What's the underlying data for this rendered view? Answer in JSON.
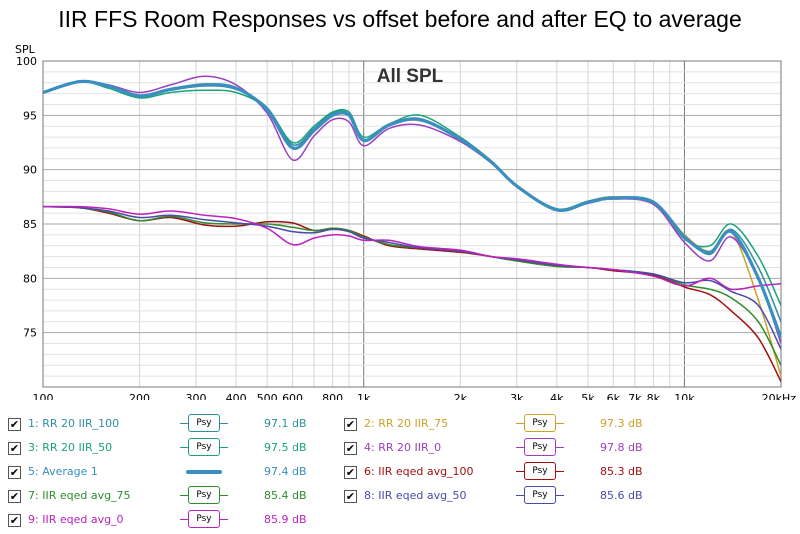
{
  "chart_data": {
    "type": "line",
    "title": "IIR FFS Room Responses vs offset before and after EQ to average",
    "inner_label": "All SPL",
    "ylabel": "SPL",
    "xscale": "log",
    "xlim": [
      100,
      20000
    ],
    "ylim": [
      70,
      100
    ],
    "x_ticks": [
      {
        "value": 100,
        "label": "100"
      },
      {
        "value": 200,
        "label": "200"
      },
      {
        "value": 300,
        "label": "300"
      },
      {
        "value": 400,
        "label": "400"
      },
      {
        "value": 500,
        "label": "500"
      },
      {
        "value": 600,
        "label": "600"
      },
      {
        "value": 800,
        "label": "800"
      },
      {
        "value": 1000,
        "label": "1k"
      },
      {
        "value": 2000,
        "label": "2k"
      },
      {
        "value": 3000,
        "label": "3k"
      },
      {
        "value": 4000,
        "label": "4k"
      },
      {
        "value": 5000,
        "label": "5k"
      },
      {
        "value": 6000,
        "label": "6k"
      },
      {
        "value": 7000,
        "label": "7k"
      },
      {
        "value": 8000,
        "label": "8k"
      },
      {
        "value": 10000,
        "label": "10k"
      },
      {
        "value": 20000,
        "label": "20kHz"
      }
    ],
    "y_ticks": [
      75,
      80,
      85,
      90,
      95,
      100
    ],
    "grid": true,
    "freqs": [
      100,
      130,
      160,
      200,
      250,
      320,
      400,
      500,
      600,
      700,
      800,
      900,
      1000,
      1200,
      1500,
      2000,
      2500,
      3000,
      4000,
      5000,
      6000,
      8000,
      10000,
      12000,
      14000,
      17000,
      20000
    ],
    "series": [
      {
        "name": "1: RR 20 IIR_100",
        "color": "#2f8f9f",
        "width": 1.5,
        "values": [
          97.1,
          98.1,
          97.7,
          96.7,
          97.3,
          97.7,
          97.4,
          95.7,
          92.3,
          93.8,
          95.2,
          95.1,
          92.6,
          94.1,
          94.7,
          92.8,
          90.7,
          88.5,
          86.4,
          87.0,
          87.3,
          87.0,
          84.0,
          82.2,
          84.5,
          81.0,
          76.0
        ]
      },
      {
        "name": "2: RR 20 IIR_75",
        "color": "#c9a227",
        "width": 1.5,
        "values": [
          97.1,
          98.1,
          97.7,
          96.8,
          97.4,
          97.9,
          97.5,
          95.5,
          92.0,
          93.6,
          95.0,
          95.0,
          92.7,
          94.2,
          94.5,
          92.9,
          90.8,
          88.4,
          86.3,
          87.1,
          87.5,
          87.0,
          84.0,
          82.5,
          84.3,
          78.0,
          71.0
        ]
      },
      {
        "name": "3: RR 20 IIR_50",
        "color": "#1ba37a",
        "width": 1.5,
        "values": [
          97.1,
          98.1,
          97.5,
          96.6,
          97.1,
          97.3,
          97.1,
          95.6,
          92.5,
          94.0,
          95.3,
          95.3,
          93.0,
          94.2,
          95.0,
          93.0,
          90.8,
          88.5,
          86.4,
          87.1,
          87.4,
          87.1,
          83.6,
          83.0,
          85.0,
          82.0,
          77.5
        ]
      },
      {
        "name": "4: RR 20 IIR_0",
        "color": "#9b3fbf",
        "width": 1.5,
        "values": [
          97.1,
          98.1,
          97.8,
          97.1,
          97.8,
          98.6,
          97.8,
          95.2,
          90.9,
          93.1,
          94.6,
          94.4,
          92.2,
          93.8,
          94.1,
          92.6,
          90.6,
          88.5,
          86.3,
          86.9,
          87.3,
          86.8,
          83.3,
          81.6,
          83.8,
          80.0,
          74.0
        ]
      },
      {
        "name": "5: Average 1",
        "color": "#3a8fc0",
        "width": 3.2,
        "values": [
          97.1,
          98.1,
          97.7,
          96.8,
          97.4,
          97.8,
          97.5,
          95.5,
          92.0,
          93.6,
          95.0,
          95.0,
          92.7,
          94.1,
          94.6,
          92.8,
          90.7,
          88.5,
          86.3,
          87.0,
          87.4,
          87.0,
          83.8,
          82.4,
          84.3,
          80.0,
          74.5
        ]
      },
      {
        "name": "6: IIR eqed avg_100",
        "color": "#a01010",
        "width": 1.5,
        "values": [
          86.6,
          86.5,
          86.0,
          85.3,
          85.6,
          84.9,
          84.8,
          85.2,
          85.1,
          84.4,
          84.6,
          84.4,
          83.9,
          83.0,
          82.7,
          82.4,
          82.0,
          81.6,
          81.1,
          81.0,
          80.7,
          80.3,
          79.2,
          78.5,
          77.0,
          74.5,
          70.5
        ]
      },
      {
        "name": "7: IIR eqed avg_75",
        "color": "#2e8b2e",
        "width": 1.5,
        "values": [
          86.6,
          86.5,
          86.1,
          85.3,
          85.7,
          85.1,
          85.0,
          85.0,
          84.7,
          84.4,
          84.6,
          84.4,
          83.8,
          83.1,
          82.8,
          82.5,
          82.0,
          81.6,
          81.1,
          81.0,
          80.8,
          80.4,
          79.4,
          79.0,
          78.2,
          76.0,
          72.0
        ]
      },
      {
        "name": "8: IIR eqed avg_50",
        "color": "#4a4aa8",
        "width": 1.5,
        "values": [
          86.6,
          86.5,
          86.2,
          85.6,
          85.8,
          85.4,
          85.1,
          84.8,
          84.3,
          84.2,
          84.5,
          84.3,
          83.7,
          83.3,
          82.8,
          82.5,
          82.0,
          81.7,
          81.2,
          81.0,
          80.8,
          80.4,
          79.6,
          79.8,
          78.8,
          77.5,
          73.5
        ]
      },
      {
        "name": "9: IIR eqed avg_0",
        "color": "#bb22bb",
        "width": 1.5,
        "values": [
          86.6,
          86.6,
          86.4,
          85.9,
          86.2,
          85.8,
          85.5,
          84.6,
          83.1,
          83.7,
          84.0,
          83.9,
          83.5,
          83.5,
          82.9,
          82.6,
          82.0,
          81.8,
          81.3,
          81.0,
          80.8,
          80.2,
          79.3,
          80.0,
          79.0,
          79.3,
          79.5
        ]
      }
    ]
  },
  "legend": [
    {
      "label": "1: RR 20 IIR_100",
      "value": "97.1 dB",
      "color": "#2f8f9f",
      "icon": "psy",
      "psy_label": "Psy",
      "checked": "✔"
    },
    {
      "label": "2: RR 20 IIR_75",
      "value": "97.3 dB",
      "color": "#c9a227",
      "icon": "psy",
      "psy_label": "Psy",
      "checked": "✔"
    },
    {
      "label": "3: RR 20 IIR_50",
      "value": "97.5 dB",
      "color": "#1ba37a",
      "icon": "psy",
      "psy_label": "Psy",
      "checked": "✔"
    },
    {
      "label": "4: RR 20 IIR_0",
      "value": "97.8 dB",
      "color": "#9b3fbf",
      "icon": "psy",
      "psy_label": "Psy",
      "checked": "✔"
    },
    {
      "label": "5: Average 1",
      "value": "97.4 dB",
      "color": "#3a8fc0",
      "icon": "thick-line",
      "psy_label": "",
      "checked": "✔"
    },
    {
      "label": "6: IIR eqed avg_100",
      "value": "85.3 dB",
      "color": "#a01010",
      "icon": "psy",
      "psy_label": "Psy",
      "checked": "✔"
    },
    {
      "label": "7: IIR eqed avg_75",
      "value": "85.4 dB",
      "color": "#2e8b2e",
      "icon": "psy",
      "psy_label": "Psy",
      "checked": "✔"
    },
    {
      "label": "8: IIR eqed avg_50",
      "value": "85.6 dB",
      "color": "#4a4aa8",
      "icon": "psy",
      "psy_label": "Psy",
      "checked": "✔"
    },
    {
      "label": "9: IIR eqed avg_0",
      "value": "85.9 dB",
      "color": "#bb22bb",
      "icon": "psy",
      "psy_label": "Psy",
      "checked": "✔"
    }
  ]
}
